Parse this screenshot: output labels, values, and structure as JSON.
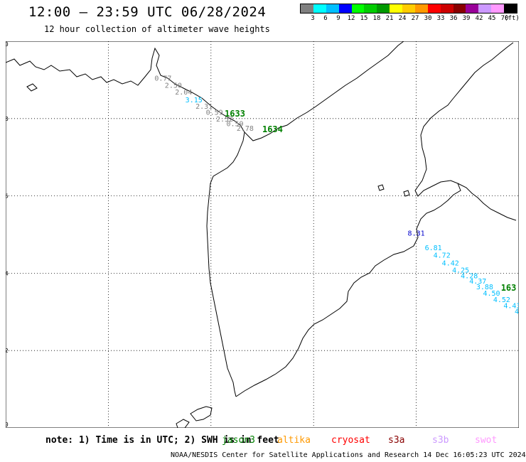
{
  "header": {
    "title": "12:00 – 23:59 UTC 06/28/2024",
    "subtitle": "12 hour collection of altimeter wave heights"
  },
  "legend": {
    "unit": "(ft)",
    "items": [
      {
        "color": "#808080",
        "label": ""
      },
      {
        "color": "#00ffff",
        "label": "3"
      },
      {
        "color": "#00bfff",
        "label": "6"
      },
      {
        "color": "#0000ff",
        "label": "9"
      },
      {
        "color": "#00ff00",
        "label": "12"
      },
      {
        "color": "#00cc00",
        "label": "15"
      },
      {
        "color": "#009900",
        "label": "18"
      },
      {
        "color": "#ffff00",
        "label": "21"
      },
      {
        "color": "#ffcc00",
        "label": "24"
      },
      {
        "color": "#ff9900",
        "label": "27"
      },
      {
        "color": "#ff0000",
        "label": "30"
      },
      {
        "color": "#cc0000",
        "label": "33"
      },
      {
        "color": "#880000",
        "label": "36"
      },
      {
        "color": "#990099",
        "label": "39"
      },
      {
        "color": "#cc99ff",
        "label": "42"
      },
      {
        "color": "#ff99ff",
        "label": "45"
      },
      {
        "color": "#000000",
        "label": "70"
      }
    ]
  },
  "map": {
    "lon_range": [
      150,
      165
    ],
    "lat_range": [
      50,
      60
    ],
    "lon_ticks": [
      "150",
      "153",
      "156",
      "159",
      "162",
      "165"
    ],
    "lat_ticks": [
      "50",
      "52",
      "54",
      "56",
      "58",
      "60"
    ],
    "grid": "dotted"
  },
  "observations": [
    {
      "lon": 154.6,
      "lat": 58.98,
      "text": "0.77",
      "color": "#808080"
    },
    {
      "lon": 154.9,
      "lat": 58.8,
      "text": "2.50",
      "color": "#808080"
    },
    {
      "lon": 155.2,
      "lat": 58.62,
      "text": "2.04",
      "color": "#808080"
    },
    {
      "lon": 155.5,
      "lat": 58.42,
      "text": "3.15",
      "color": "#00bfff"
    },
    {
      "lon": 155.8,
      "lat": 58.25,
      "text": "2.31",
      "color": "#808080"
    },
    {
      "lon": 156.1,
      "lat": 58.1,
      "text": "0.59",
      "color": "#808080"
    },
    {
      "lon": 156.7,
      "lat": 58.05,
      "text": "1633",
      "color": "#008000",
      "bold": true
    },
    {
      "lon": 156.4,
      "lat": 57.92,
      "text": "2.52",
      "color": "#808080"
    },
    {
      "lon": 156.7,
      "lat": 57.8,
      "text": "0.59",
      "color": "#808080"
    },
    {
      "lon": 157.0,
      "lat": 57.68,
      "text": "2.78",
      "color": "#808080"
    },
    {
      "lon": 157.8,
      "lat": 57.65,
      "text": "1634",
      "color": "#008000",
      "bold": true
    },
    {
      "lon": 162.0,
      "lat": 54.97,
      "text": "8.31",
      "color": "#0000cc"
    },
    {
      "lon": 162.5,
      "lat": 54.6,
      "text": "6.81",
      "color": "#00bfff"
    },
    {
      "lon": 162.75,
      "lat": 54.4,
      "text": "4.72",
      "color": "#00bfff"
    },
    {
      "lon": 163.0,
      "lat": 54.2,
      "text": "4.42",
      "color": "#00bfff"
    },
    {
      "lon": 163.3,
      "lat": 54.02,
      "text": "4.25",
      "color": "#00bfff"
    },
    {
      "lon": 163.55,
      "lat": 53.87,
      "text": "4.28",
      "color": "#00bfff"
    },
    {
      "lon": 163.8,
      "lat": 53.73,
      "text": "4.37",
      "color": "#00bfff"
    },
    {
      "lon": 164.0,
      "lat": 53.58,
      "text": "3.88",
      "color": "#00bfff"
    },
    {
      "lon": 164.7,
      "lat": 53.55,
      "text": "163",
      "color": "#008000",
      "bold": true
    },
    {
      "lon": 164.2,
      "lat": 53.42,
      "text": "4.50",
      "color": "#00bfff"
    },
    {
      "lon": 164.5,
      "lat": 53.25,
      "text": "4.52",
      "color": "#00bfff"
    },
    {
      "lon": 164.8,
      "lat": 53.1,
      "text": "4.43",
      "color": "#00bfff"
    },
    {
      "lon": 165.0,
      "lat": 52.95,
      "text": "4.",
      "color": "#00bfff"
    }
  ],
  "footer": {
    "note": "note: 1) Time is in UTC; 2) SWH is in feet",
    "missions": [
      {
        "label": "jason3",
        "color": "#008000"
      },
      {
        "label": "altika",
        "color": "#ff9900"
      },
      {
        "label": "cryosat",
        "color": "#ff0000"
      },
      {
        "label": "s3a",
        "color": "#880000"
      },
      {
        "label": "s3b",
        "color": "#cc99ff"
      },
      {
        "label": "swot",
        "color": "#ff99ff"
      }
    ],
    "credit": "NOAA/NESDIS Center for Satellite Applications and Research   14 Dec 16:05:23 UTC 2024"
  }
}
